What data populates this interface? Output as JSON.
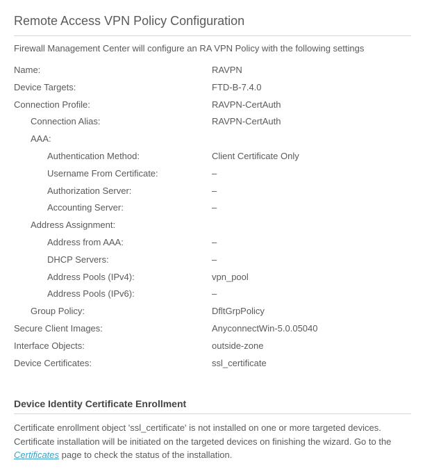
{
  "title": "Remote Access VPN Policy Configuration",
  "intro": "Firewall Management Center will configure an RA VPN Policy with the following settings",
  "fields": {
    "name": {
      "label": "Name:",
      "value": "RAVPN"
    },
    "device_targets": {
      "label": "Device Targets:",
      "value": "FTD-B-7.4.0"
    },
    "connection_profile": {
      "label": "Connection Profile:",
      "value": "RAVPN-CertAuth"
    },
    "connection_alias": {
      "label": "Connection Alias:",
      "value": "RAVPN-CertAuth"
    },
    "aaa": {
      "label": "AAA:"
    },
    "auth_method": {
      "label": "Authentication Method:",
      "value": "Client Certificate Only"
    },
    "user_from_cert": {
      "label": "Username From Certificate:",
      "value": "–"
    },
    "authz_server": {
      "label": "Authorization Server:",
      "value": "–"
    },
    "acct_server": {
      "label": "Accounting Server:",
      "value": "–"
    },
    "addr_assign": {
      "label": "Address Assignment:"
    },
    "addr_from_aaa": {
      "label": "Address from AAA:",
      "value": "–"
    },
    "dhcp_servers": {
      "label": "DHCP Servers:",
      "value": "–"
    },
    "pools_v4": {
      "label": "Address Pools (IPv4):",
      "value": "vpn_pool"
    },
    "pools_v6": {
      "label": "Address Pools (IPv6):",
      "value": "–"
    },
    "group_policy": {
      "label": "Group Policy:",
      "value": "DfltGrpPolicy"
    },
    "client_images": {
      "label": "Secure Client Images:",
      "value": "AnyconnectWin-5.0.05040"
    },
    "iface_objects": {
      "label": "Interface Objects:",
      "value": "outside-zone"
    },
    "device_certs": {
      "label": "Device Certificates:",
      "value": "ssl_certificate"
    }
  },
  "section2": {
    "title": "Device Identity Certificate Enrollment",
    "note_pre": "Certificate enrollment object 'ssl_certificate' is not installed on one or more targeted devices. Certificate installation will be initiated on the targeted devices on finishing the wizard. Go to the ",
    "link_text": "Certificates",
    "note_post": " page to check the status of the installation."
  }
}
